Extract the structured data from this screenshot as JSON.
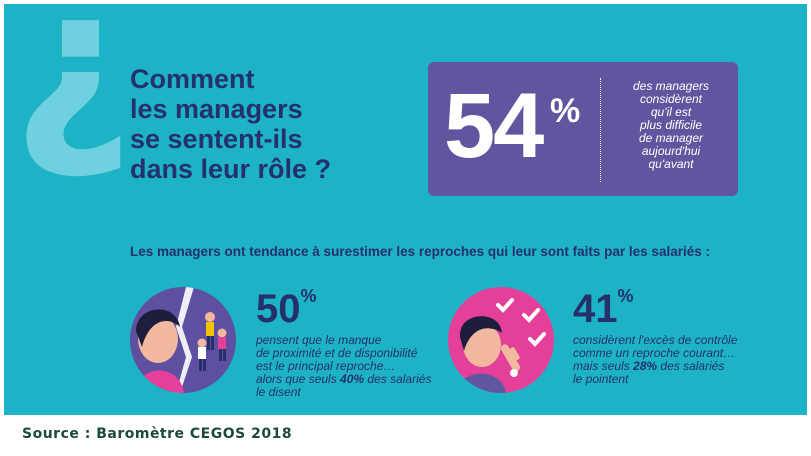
{
  "title_lines": [
    "Comment",
    "les managers",
    "se sentent-ils",
    "dans leur rôle ?"
  ],
  "question_mark": "¿",
  "headline_stat": {
    "value": "54",
    "unit": "%",
    "caption_lines": [
      "des managers",
      "considèrent",
      "qu'il est",
      "plus difficile",
      "de manager",
      "aujourd'hui",
      "qu'avant"
    ]
  },
  "intro": "Les managers ont tendance à surestimer les reproches qui leur sont faits par les salariés :",
  "stats": [
    {
      "value": "50",
      "unit": "%",
      "lines": [
        "pensent que le manque",
        "de proximité et de disponibilité",
        "est le principal reproche…"
      ],
      "line_pre": "alors que seuls ",
      "line_bold": "40%",
      "line_post": " des salariés",
      "last_line": "le disent"
    },
    {
      "value": "41",
      "unit": "%",
      "lines": [
        "considèrent l'excès de contrôle",
        "comme un reproche courant…"
      ],
      "line_pre": "mais seuls ",
      "line_bold": "28%",
      "line_post": " des salariés",
      "last_line": "le pointent"
    }
  ],
  "source": "Source : Baromètre CEGOS 2018",
  "colors": {
    "background": "#1eb2c6",
    "navy": "#24316b",
    "purple": "#60569f",
    "pink": "#e4409a",
    "question_mark": "#6fd1df"
  }
}
